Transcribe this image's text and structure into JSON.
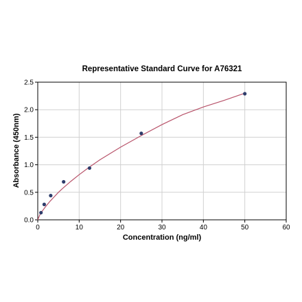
{
  "chart_data": {
    "type": "scatter",
    "title": "Representative Standard Curve for A76321",
    "xlabel": "Concentration (ng/ml)",
    "ylabel": "Absorbance (450nm)",
    "xlim": [
      0,
      60
    ],
    "ylim": [
      0,
      2.5
    ],
    "x_ticks": [
      "0",
      "10",
      "20",
      "30",
      "40",
      "50",
      "60"
    ],
    "y_ticks": [
      "0.0",
      "0.5",
      "1.0",
      "1.5",
      "2.0",
      "2.5"
    ],
    "grid": true,
    "legend": "none",
    "series": [
      {
        "x": [
          0.78,
          1.56,
          3.13,
          6.25,
          12.5,
          25,
          50
        ],
        "y": [
          0.13,
          0.28,
          0.44,
          0.69,
          0.94,
          1.57,
          2.29
        ],
        "marker_color": "#2e3d6b"
      }
    ],
    "fit_curve": {
      "color": "#b8536a",
      "x": [
        0,
        0.5,
        1,
        2,
        3,
        4,
        5,
        6,
        8,
        10,
        12.5,
        15,
        20,
        25,
        30,
        35,
        40,
        45,
        50
      ],
      "y": [
        0.0,
        0.09,
        0.15,
        0.25,
        0.34,
        0.42,
        0.5,
        0.57,
        0.7,
        0.82,
        0.96,
        1.09,
        1.32,
        1.53,
        1.73,
        1.91,
        2.05,
        2.17,
        2.3
      ]
    }
  }
}
